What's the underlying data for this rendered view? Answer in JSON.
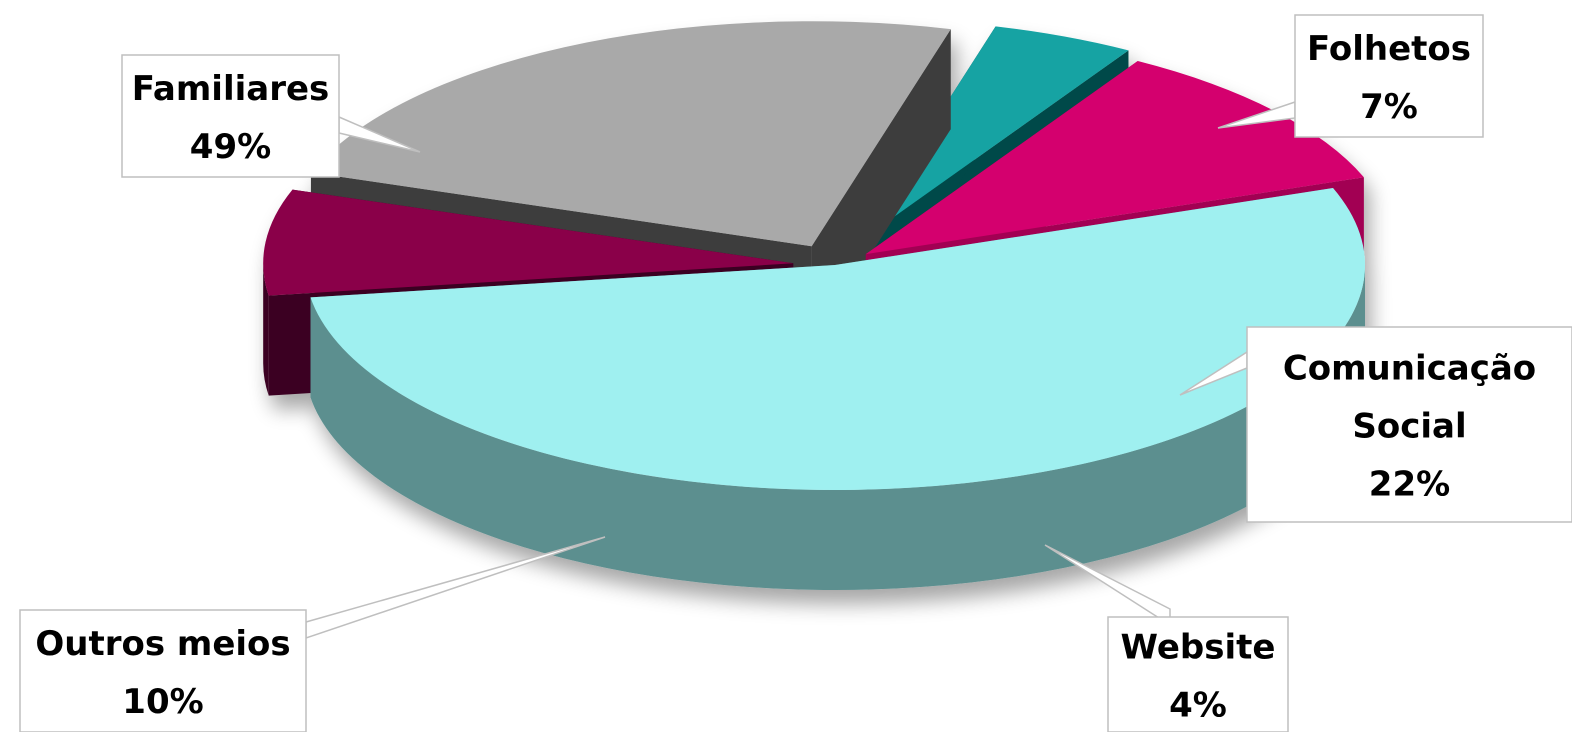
{
  "chart_data": {
    "type": "pie",
    "title": "",
    "labels": [
      "Familiares",
      "Folhetos",
      "Comunicação Social",
      "Website",
      "Outros meios"
    ],
    "values": [
      49,
      7,
      22,
      4,
      10
    ],
    "data_labels": [
      {
        "name_lines": [
          "Familiares"
        ],
        "pct": "49%"
      },
      {
        "name_lines": [
          "Folhetos"
        ],
        "pct": "7%"
      },
      {
        "name_lines": [
          "Comunicação",
          "Social"
        ],
        "pct": "22%"
      },
      {
        "name_lines": [
          "Website"
        ],
        "pct": "4%"
      },
      {
        "name_lines": [
          "Outros meios"
        ],
        "pct": "10%"
      }
    ],
    "colors": [
      "#9ff0f0",
      "#8a0049",
      "#a9a9a9",
      "#14a3a3",
      "#d4006e"
    ],
    "side_colors": [
      "#5c8f8f",
      "#3a0020",
      "#3e3e3e",
      "#054848",
      "#a20052"
    ],
    "exploded": true,
    "legend": false,
    "style": "3d"
  }
}
